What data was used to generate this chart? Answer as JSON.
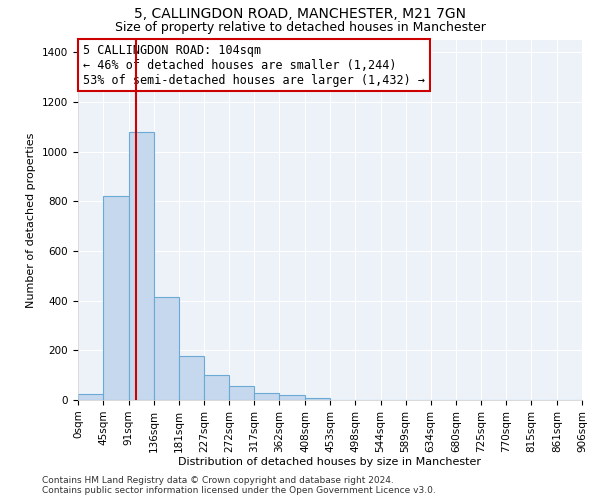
{
  "title": "5, CALLINGDON ROAD, MANCHESTER, M21 7GN",
  "subtitle": "Size of property relative to detached houses in Manchester",
  "xlabel": "Distribution of detached houses by size in Manchester",
  "ylabel": "Number of detached properties",
  "bar_color": "#c5d8ee",
  "bar_edge_color": "#6aaad4",
  "vline_color": "#cc0000",
  "vline_x": 104,
  "annotation_line1": "5 CALLINGDON ROAD: 104sqm",
  "annotation_line2": "← 46% of detached houses are smaller (1,244)",
  "annotation_line3": "53% of semi-detached houses are larger (1,432) →",
  "bin_edges": [
    0,
    45,
    91,
    136,
    181,
    227,
    272,
    317,
    362,
    408,
    453,
    498,
    544,
    589,
    634,
    680,
    725,
    770,
    815,
    861,
    906
  ],
  "bar_heights": [
    25,
    820,
    1080,
    415,
    178,
    100,
    55,
    30,
    20,
    8,
    2,
    1,
    0,
    0,
    0,
    0,
    0,
    0,
    0,
    0
  ],
  "ylim": [
    0,
    1450
  ],
  "yticks": [
    0,
    200,
    400,
    600,
    800,
    1000,
    1200,
    1400
  ],
  "footer_line1": "Contains HM Land Registry data © Crown copyright and database right 2024.",
  "footer_line2": "Contains public sector information licensed under the Open Government Licence v3.0.",
  "plot_background": "#edf2f9",
  "title_fontsize": 10,
  "subtitle_fontsize": 9,
  "axis_label_fontsize": 8,
  "tick_fontsize": 7.5,
  "footer_fontsize": 6.5,
  "ann_fontsize": 8.5
}
